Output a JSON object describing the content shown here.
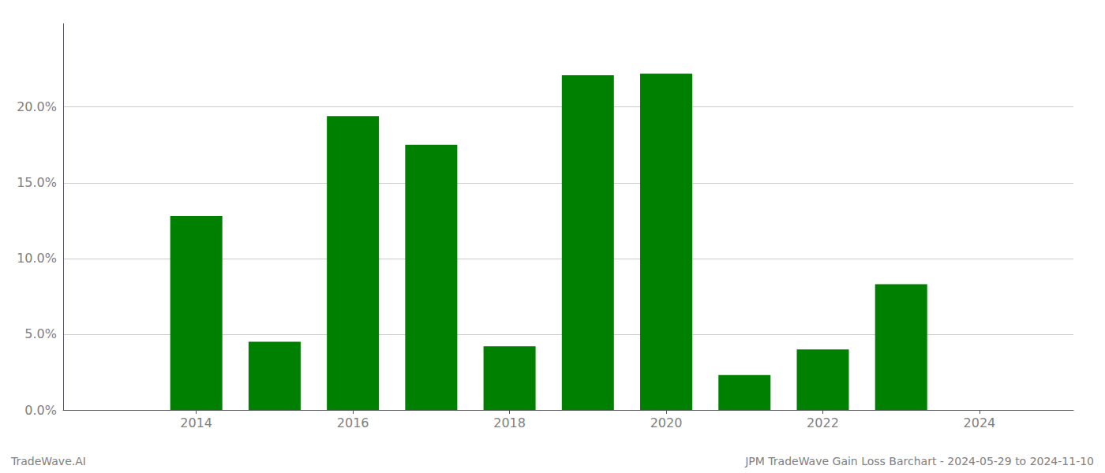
{
  "chart_data": {
    "type": "bar",
    "x": [
      2013,
      2014,
      2015,
      2016,
      2017,
      2018,
      2019,
      2020,
      2021,
      2022,
      2023,
      2024
    ],
    "values": [
      0.0,
      0.128,
      0.045,
      0.194,
      0.175,
      0.042,
      0.221,
      0.222,
      0.023,
      0.04,
      0.083,
      0.0
    ],
    "color": "#008000",
    "xlim": [
      2012.3,
      2025.2
    ],
    "xticks": [
      2014,
      2016,
      2018,
      2020,
      2022,
      2024
    ],
    "ylim": [
      0,
      0.255
    ],
    "yticks": [
      {
        "value": 0.0,
        "label": "0.0%"
      },
      {
        "value": 0.05,
        "label": "5.0%"
      },
      {
        "value": 0.1,
        "label": "10.0%"
      },
      {
        "value": 0.15,
        "label": "15.0%"
      },
      {
        "value": 0.2,
        "label": "20.0%"
      }
    ],
    "grid": true,
    "annotations": [
      "TradeWave.AI",
      "JPM TradeWave Gain Loss Barchart - 2024-05-29 to 2024-11-10"
    ]
  }
}
